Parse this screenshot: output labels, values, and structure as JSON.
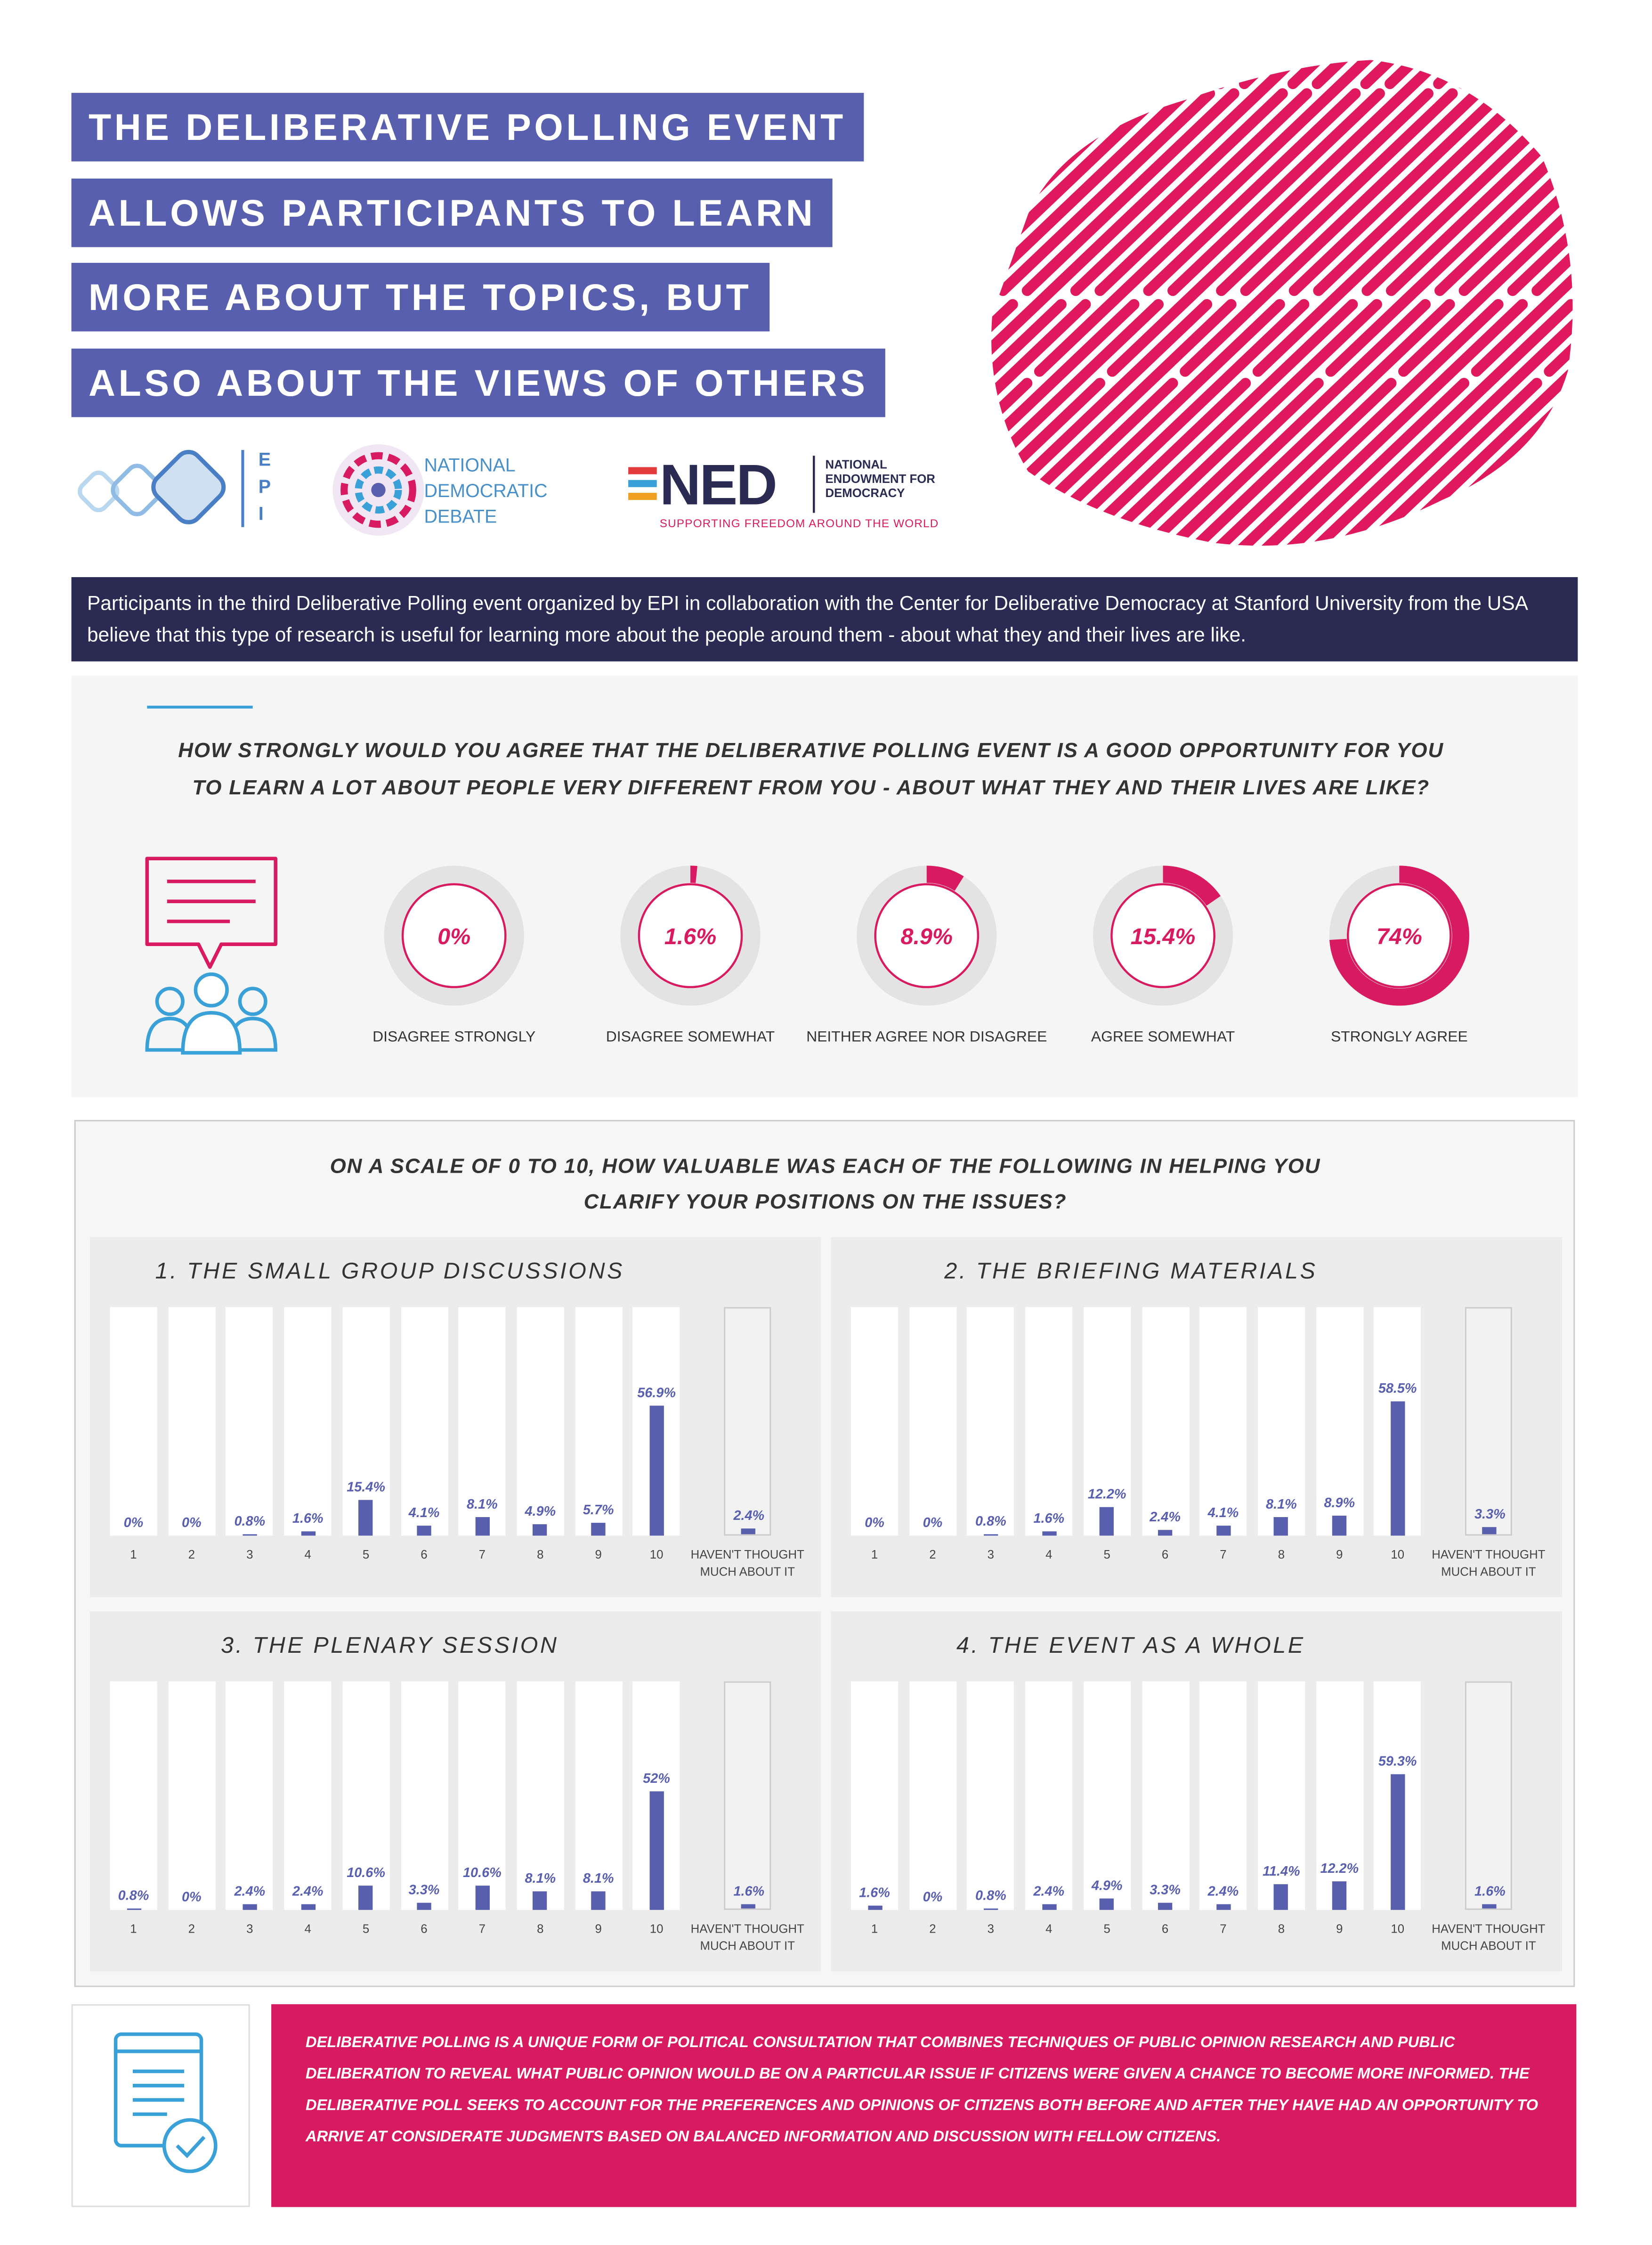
{
  "header": {
    "title_lines": [
      "THE DELIBERATIVE POLLING EVENT",
      "ALLOWS PARTICIPANTS TO LEARN",
      "MORE ABOUT THE TOPICS, BUT",
      "ALSO ABOUT THE VIEWS OF OTHERS"
    ],
    "logos": {
      "epi": "EPI",
      "ndd": "NATIONAL DEMOCRATIC DEBATE",
      "ned": "NED",
      "ned_name": "NATIONAL ENDOWMENT FOR DEMOCRACY",
      "ned_tagline": "SUPPORTING FREEDOM AROUND THE WORLD"
    }
  },
  "intro": "Participants in the third Deliberative Polling event organized by EPI in collaboration with the Center for Deliberative Democracy at Stanford University from the USA believe that this type of research is useful for learning more about the people around them - about what they and their lives are like.",
  "section2_title": "ON A SCALE OF 0 TO 10, HOW VALUABLE WAS EACH OF THE FOLLOWING IN HELPING YOU CLARIFY YOUR POSITIONS ON THE ISSUES?",
  "chart_data": [
    {
      "type": "donut",
      "title": "HOW STRONGLY WOULD YOU AGREE THAT THE DELIBERATIVE POLLING EVENT IS A GOOD OPPORTUNITY FOR YOU TO LEARN A LOT ABOUT PEOPLE VERY DIFFERENT FROM YOU - ABOUT WHAT THEY AND THEIR LIVES ARE LIKE?",
      "categories": [
        "DISAGREE STRONGLY",
        "DISAGREE SOMEWHAT",
        "NEITHER AGREE NOR DISAGREE",
        "AGREE SOMEWHAT",
        "STRONGLY AGREE"
      ],
      "values": [
        0,
        1.6,
        8.9,
        15.4,
        74
      ],
      "value_labels": [
        "0%",
        "1.6%",
        "8.9%",
        "15.4%",
        "74%"
      ],
      "color": "#d81b60",
      "track_color": "#e3e3e3"
    },
    {
      "type": "bar",
      "title": "1. THE SMALL GROUP DISCUSSIONS",
      "categories": [
        "1",
        "2",
        "3",
        "4",
        "5",
        "6",
        "7",
        "8",
        "9",
        "10",
        "HAVEN'T THOUGHT MUCH ABOUT IT"
      ],
      "values": [
        0,
        0,
        0.8,
        1.6,
        15.4,
        4.1,
        8.1,
        4.9,
        5.7,
        56.9,
        2.4
      ],
      "value_labels": [
        "0%",
        "0%",
        "0.8%",
        "1.6%",
        "15.4%",
        "4.1%",
        "8.1%",
        "4.9%",
        "5.7%",
        "56.9%",
        "2.4%"
      ],
      "color": "#585fae",
      "ylim": [
        0,
        100
      ]
    },
    {
      "type": "bar",
      "title": "2. THE BRIEFING MATERIALS",
      "categories": [
        "1",
        "2",
        "3",
        "4",
        "5",
        "6",
        "7",
        "8",
        "9",
        "10",
        "HAVEN'T THOUGHT MUCH ABOUT IT"
      ],
      "values": [
        0,
        0,
        0.8,
        1.6,
        12.2,
        2.4,
        4.1,
        8.1,
        8.9,
        58.5,
        3.3
      ],
      "value_labels": [
        "0%",
        "0%",
        "0.8%",
        "1.6%",
        "12.2%",
        "2.4%",
        "4.1%",
        "8.1%",
        "8.9%",
        "58.5%",
        "3.3%"
      ],
      "color": "#585fae",
      "ylim": [
        0,
        100
      ]
    },
    {
      "type": "bar",
      "title": "3. THE PLENARY SESSION",
      "categories": [
        "1",
        "2",
        "3",
        "4",
        "5",
        "6",
        "7",
        "8",
        "9",
        "10",
        "HAVEN'T THOUGHT MUCH ABOUT IT"
      ],
      "values": [
        0.8,
        0,
        2.4,
        2.4,
        10.6,
        3.3,
        10.6,
        8.1,
        8.1,
        52,
        1.6
      ],
      "value_labels": [
        "0.8%",
        "0%",
        "2.4%",
        "2.4%",
        "10.6%",
        "3.3%",
        "10.6%",
        "8.1%",
        "8.1%",
        "52%",
        "1.6%"
      ],
      "color": "#585fae",
      "ylim": [
        0,
        100
      ]
    },
    {
      "type": "bar",
      "title": "4. THE EVENT AS A WHOLE",
      "categories": [
        "1",
        "2",
        "3",
        "4",
        "5",
        "6",
        "7",
        "8",
        "9",
        "10",
        "HAVEN'T THOUGHT MUCH ABOUT IT"
      ],
      "values": [
        1.6,
        0,
        0.8,
        2.4,
        4.9,
        3.3,
        2.4,
        11.4,
        12.2,
        59.3,
        1.6
      ],
      "value_labels": [
        "1.6%",
        "0%",
        "0.8%",
        "2.4%",
        "4.9%",
        "3.3%",
        "2.4%",
        "11.4%",
        "12.2%",
        "59.3%",
        "1.6%"
      ],
      "color": "#585fae",
      "ylim": [
        0,
        100
      ]
    }
  ],
  "footer": "DELIBERATIVE POLLING IS A UNIQUE FORM OF POLITICAL CONSULTATION THAT COMBINES TECHNIQUES OF PUBLIC OPINION RESEARCH AND PUBLIC DELIBERATION TO REVEAL WHAT PUBLIC OPINION WOULD BE ON A PARTICULAR ISSUE IF CITIZENS WERE GIVEN A CHANCE TO BECOME MORE INFORMED. THE DELIBERATIVE POLL SEEKS TO ACCOUNT FOR THE PREFERENCES AND OPINIONS OF CITIZENS BOTH BEFORE AND AFTER THEY HAVE HAD AN OPPORTUNITY TO ARRIVE AT CONSIDERATE JUDGMENTS BASED ON BALANCED INFORMATION AND DISCUSSION WITH FELLOW CITIZENS."
}
